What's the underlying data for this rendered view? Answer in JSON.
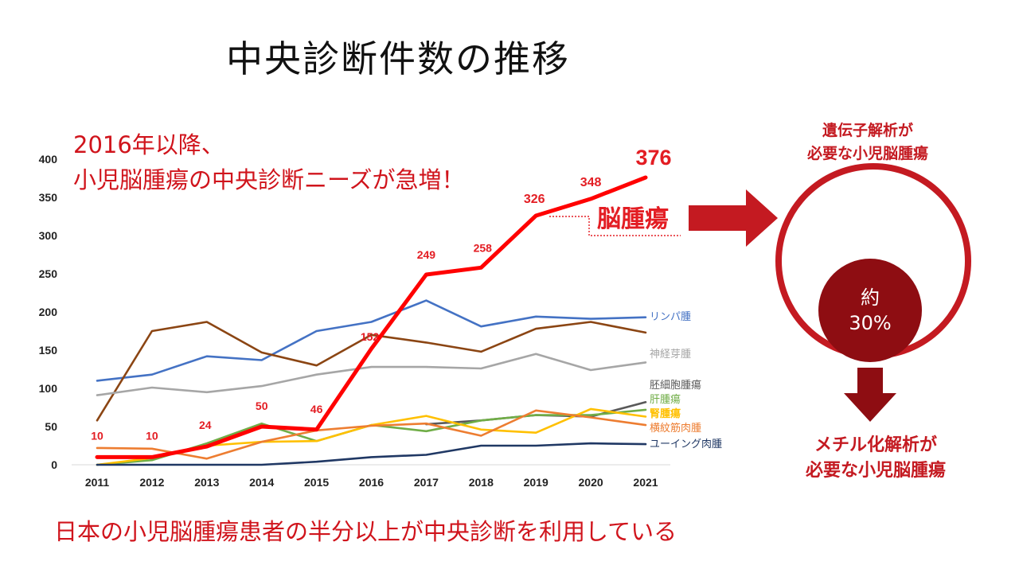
{
  "title": "中央診断件数の推移",
  "headline": {
    "line1": "2016年以降、",
    "line2": "小児脳腫瘍の中央診断ニーズが急増！"
  },
  "footer": "日本の小児脳腫瘍患者の半分以上が中央診断を利用している",
  "right_panel": {
    "top_label_line1": "遺伝子解析が",
    "top_label_line2": "必要な小児脳腫瘍",
    "inner_label": "約",
    "inner_value": "30%",
    "bottom_label_line1": "メチル化解析が",
    "bottom_label_line2": "必要な小児脳腫瘍"
  },
  "colors": {
    "accent_red": "#e31d23",
    "dark_red": "#c41a21",
    "maroon": "#8e0d12"
  },
  "chart_data": {
    "type": "line",
    "title": "",
    "xlabel": "",
    "ylabel": "",
    "ylim": [
      0,
      400
    ],
    "yticks": [
      0,
      50,
      100,
      150,
      200,
      250,
      300,
      350,
      400
    ],
    "x": [
      "2011",
      "2012",
      "2013",
      "2014",
      "2015",
      "2016",
      "2017",
      "2018",
      "2019",
      "2020",
      "2021"
    ],
    "highlight_label": "脳腫瘍",
    "series": [
      {
        "name": "リンパ腫",
        "color": "#4472c4",
        "values": [
          110,
          118,
          142,
          137,
          175,
          187,
          215,
          181,
          194,
          191,
          193
        ]
      },
      {
        "name": "",
        "color": "#8b4513",
        "values": [
          58,
          175,
          187,
          147,
          130,
          170,
          160,
          148,
          178,
          187,
          173
        ]
      },
      {
        "name": "神経芽腫",
        "color": "#a6a6a6",
        "values": [
          91,
          101,
          95,
          103,
          118,
          128,
          128,
          126,
          145,
          124,
          134
        ]
      },
      {
        "name": "胚細胞腫瘍",
        "color": "#595959",
        "values": [
          null,
          null,
          null,
          null,
          null,
          null,
          53,
          58,
          65,
          63,
          82
        ]
      },
      {
        "name": "肝腫瘍",
        "color": "#70ad47",
        "values": [
          0,
          6,
          28,
          54,
          31,
          52,
          44,
          58,
          65,
          65,
          72
        ]
      },
      {
        "name": "腎腫瘍",
        "color": "#ffc000",
        "values": [
          0,
          9,
          25,
          30,
          31,
          52,
          64,
          46,
          42,
          73,
          63
        ]
      },
      {
        "name": "横紋筋肉腫",
        "color": "#ed7d31",
        "values": [
          22,
          21,
          8,
          30,
          45,
          51,
          54,
          38,
          71,
          62,
          52
        ]
      },
      {
        "name": "ユーイング肉腫",
        "color": "#203864",
        "values": [
          0,
          0,
          0,
          0,
          4,
          10,
          13,
          25,
          25,
          28,
          27
        ]
      },
      {
        "name": "脳腫瘍",
        "color": "#ff0000",
        "values": [
          10,
          10,
          24,
          50,
          46,
          152,
          249,
          258,
          326,
          348,
          376
        ]
      }
    ]
  }
}
